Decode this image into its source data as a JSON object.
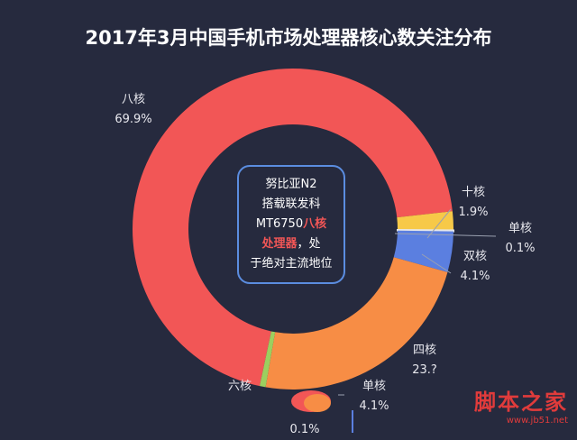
{
  "chart_data": {
    "type": "pie",
    "donut": true,
    "title": "2017年3月中国手机市场处理器核心数关注分布",
    "categories": [
      "八核",
      "十核",
      "单核",
      "双核",
      "四核",
      "六核"
    ],
    "values": [
      69.9,
      1.9,
      0.1,
      4.1,
      23.4,
      0.6
    ],
    "labels": [
      "69.9%",
      "1.9%",
      "0.1%",
      "4.1%",
      "23.?",
      ""
    ],
    "colors": [
      "#f25656",
      "#f7c948",
      "#e8e8e8",
      "#5b7fe0",
      "#f78d45",
      "#9ccf5f"
    ],
    "legend": "none"
  },
  "center_text": {
    "line1": "努比亚N2",
    "line2": "搭载联发科",
    "line3_a": "MT6750",
    "line3_b": "八核",
    "line4_a": "处理器",
    "line4_b": "，处",
    "line5": "于绝对主流地位"
  },
  "artifact_labels": {
    "name": "单核",
    "value": "4.1%",
    "value2": "0.1%"
  },
  "watermark": {
    "text": "脚本之家",
    "url": "www.jb51.net"
  }
}
